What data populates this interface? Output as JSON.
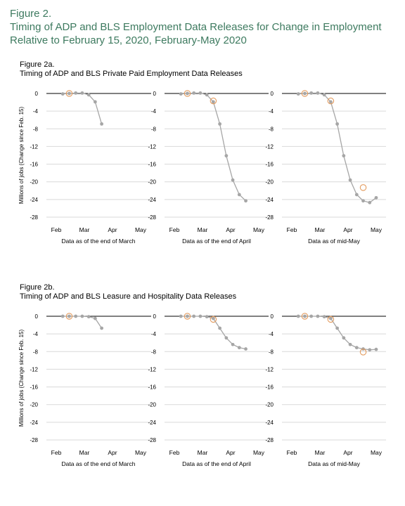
{
  "figure": {
    "label": "Figure 2.",
    "title_line1": "Timing of ADP and BLS Employment Data Releases for Change in Employment",
    "title_line2": "Relative to February 15, 2020, February-May 2020"
  },
  "colors": {
    "title": "#3d7a5f",
    "line": "#a6a6a6",
    "marker": "#a6a6a6",
    "bls_circle": "#e39a5c",
    "gridline": "#d9d9d9",
    "zero_line": "#000000"
  },
  "panels": [
    {
      "label": "Figure 2a.",
      "title": "Timing of ADP and BLS Private Paid Employment Data Releases"
    },
    {
      "label": "Figure 2b.",
      "title": "Timing of ADP and BLS Leasure and Hospitality Data Releases"
    }
  ],
  "chart_data": [
    {
      "type": "line",
      "panel": "2a",
      "subtitle": "Data as of the end of March",
      "ylabel": "Millions of jobs (Change since Feb. 15)",
      "x_ticks": [
        "Feb",
        "Mar",
        "Apr",
        "May"
      ],
      "y_ticks": [
        0,
        -4,
        -8,
        -12,
        -16,
        -20,
        -24,
        -28
      ],
      "ylim": [
        -29,
        0.5
      ],
      "xlim": [
        0,
        13
      ],
      "series": [
        {
          "x": [
            1,
            2,
            3,
            4,
            5,
            6,
            7
          ],
          "values": [
            -0.1,
            0.0,
            0.1,
            0.1,
            -0.3,
            -1.9,
            -6.9
          ]
        },
        {
          "markers": "open-circle",
          "x": [
            2
          ],
          "values": [
            0.0
          ]
        }
      ],
      "grid": true
    },
    {
      "type": "line",
      "panel": "2a",
      "subtitle": "Data as of the end of April",
      "x_ticks": [
        "Feb",
        "Mar",
        "Apr",
        "May"
      ],
      "y_ticks": [
        0,
        -4,
        -8,
        -12,
        -16,
        -20,
        -24,
        -28
      ],
      "ylim": [
        -29,
        0.5
      ],
      "xlim": [
        0,
        13
      ],
      "series": [
        {
          "x": [
            1,
            2,
            3,
            4,
            5,
            6,
            7,
            8,
            9,
            10,
            11
          ],
          "values": [
            -0.1,
            0.0,
            0.1,
            0.1,
            -0.3,
            -1.9,
            -6.9,
            -14.1,
            -19.6,
            -22.9,
            -24.3
          ]
        },
        {
          "markers": "open-circle",
          "x": [
            2,
            6
          ],
          "values": [
            0.0,
            -1.7
          ]
        }
      ],
      "grid": true
    },
    {
      "type": "line",
      "panel": "2a",
      "subtitle": "Data as of mid-May",
      "x_ticks": [
        "Feb",
        "Mar",
        "Apr",
        "May"
      ],
      "y_ticks": [
        0,
        -4,
        -8,
        -12,
        -16,
        -20,
        -24,
        -28
      ],
      "ylim": [
        -29,
        0.5
      ],
      "xlim": [
        0,
        13
      ],
      "series": [
        {
          "x": [
            1,
            2,
            3,
            4,
            5,
            6,
            7,
            8,
            9,
            10,
            11,
            12,
            13
          ],
          "values": [
            -0.1,
            0.0,
            0.1,
            0.1,
            -0.3,
            -1.9,
            -6.9,
            -14.1,
            -19.6,
            -22.9,
            -24.3,
            -24.7,
            -23.6
          ]
        },
        {
          "markers": "open-circle",
          "x": [
            2,
            6,
            11
          ],
          "values": [
            0.0,
            -1.7,
            -21.3
          ]
        }
      ],
      "grid": true
    },
    {
      "type": "line",
      "panel": "2b",
      "subtitle": "Data as of the end of March",
      "ylabel": "Millions of jobs (Change since Feb. 15)",
      "x_ticks": [
        "Feb",
        "Mar",
        "Apr",
        "May"
      ],
      "y_ticks": [
        0,
        -4,
        -8,
        -12,
        -16,
        -20,
        -24,
        -28
      ],
      "ylim": [
        -29,
        0.5
      ],
      "xlim": [
        0,
        13
      ],
      "series": [
        {
          "x": [
            1,
            2,
            3,
            4,
            5,
            6,
            7
          ],
          "values": [
            0.0,
            0.0,
            0.0,
            0.0,
            -0.1,
            -0.5,
            -2.7
          ]
        },
        {
          "markers": "open-circle",
          "x": [
            2
          ],
          "values": [
            0.0
          ]
        }
      ],
      "grid": true
    },
    {
      "type": "line",
      "panel": "2b",
      "subtitle": "Data as of the end of April",
      "x_ticks": [
        "Feb",
        "Mar",
        "Apr",
        "May"
      ],
      "y_ticks": [
        0,
        -4,
        -8,
        -12,
        -16,
        -20,
        -24,
        -28
      ],
      "ylim": [
        -29,
        0.5
      ],
      "xlim": [
        0,
        13
      ],
      "series": [
        {
          "x": [
            1,
            2,
            3,
            4,
            5,
            6,
            7,
            8,
            9,
            10,
            11
          ],
          "values": [
            0.0,
            0.0,
            0.0,
            0.0,
            -0.1,
            -0.5,
            -2.7,
            -4.9,
            -6.4,
            -7.1,
            -7.4
          ]
        },
        {
          "markers": "open-circle",
          "x": [
            2,
            6
          ],
          "values": [
            0.0,
            -0.7
          ]
        }
      ],
      "grid": true
    },
    {
      "type": "line",
      "panel": "2b",
      "subtitle": "Data as of mid-May",
      "x_ticks": [
        "Feb",
        "Mar",
        "Apr",
        "May"
      ],
      "y_ticks": [
        0,
        -4,
        -8,
        -12,
        -16,
        -20,
        -24,
        -28
      ],
      "ylim": [
        -29,
        0.5
      ],
      "xlim": [
        0,
        13
      ],
      "series": [
        {
          "x": [
            1,
            2,
            3,
            4,
            5,
            6,
            7,
            8,
            9,
            10,
            11,
            12,
            13
          ],
          "values": [
            0.0,
            0.0,
            0.0,
            0.0,
            -0.1,
            -0.5,
            -2.7,
            -4.9,
            -6.4,
            -7.1,
            -7.4,
            -7.6,
            -7.5
          ]
        },
        {
          "markers": "open-circle",
          "x": [
            2,
            6,
            11
          ],
          "values": [
            0.0,
            -0.7,
            -8.1
          ]
        }
      ],
      "grid": true
    }
  ]
}
